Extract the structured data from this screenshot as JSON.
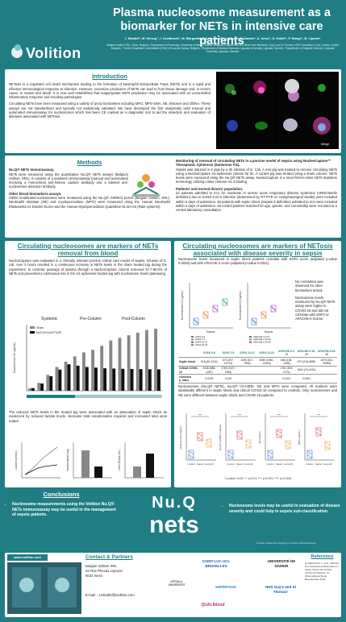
{
  "header": {
    "logo_text": "Volition",
    "title": "Plasma nucleosome measurement as a biomarker for NETs in intensive care patients",
    "authors": "J. Micallef¹, M. Herzog ¹, I. Cavdinovic¹, M. Wargodsky², A. Venturelli³, L. Morin³, L. Dandis⁴, A. Amoz⁵, D. Seidel⁶, P. Mange⁷, M. Lipsetz⁸",
    "affiliations": "¹Belgian Volition SRL, Isnes, Belgium, ²Department of Pharmacy, University of Namur, Namur, Belgium, ³Department of Critical Care Medicine, Guy's and St Thomas' NHS Foundation Trust, London, United Kingdom, ⁴Centre Hospitalier Universitaire (CHU) UCLouvain Namur, Belgium, ⁵Department of Medical Sciences, Uppsala University, Uppsala, Sweden, ⁶Department of Surgical Sciences, Uppsala University, Uppsala, Sweden"
  },
  "intro": {
    "title": "Introduction",
    "p1": "NETosis is a regulated cell death mechanism leading to the formation of Neutrophil Extracellular Traps (NETs) and is a rapid and effective immunological response to infection. However, excessive production of NETs can lead to host tissue damage and, in severe cases, to sepsis and death. It is now well established that inappropriate NETs production may be associated with an uncontrolled inflammatory response and resulting pathologies.",
    "p2": "Circulating NETs have been measured using a variety of proxy biomarkers including MPO, MPO-DNA, NE, histones and cfDNA. These assays are not standardized and typically not analytically validated. We have developed the first analytically valid manual and automated immunoassay for nucleosomes which has been CE marked as a diagnostic tool to aid the detection and evaluation of diseases associated with NETosis.",
    "image_caption": "Merge"
  },
  "methods": {
    "title": "Methods",
    "h1": "Nu.Q® NETs Immunoassay.",
    "p1": "NETs were measured using the quantitative Nu.Q® NETs assays (Belgium Volition, SRL). It consists of a sandwich immunoassay (manual and automated) involving a monoclonal anti-histone capture antibody and a labeled anti-nucleosome detection antibody.",
    "h2": "Other blood biomarkers assays.",
    "p2": "H3R8 citrullinated-nucleosomes were measured using the Nu.Q® H3R8Cit ELISA (Belgian Volition, SRL). Neutrophil elastase (NE) and myeloperoxidase (MPO) were measured using the Human Neutrophil Elastase/ELA2 DuoSet ELISA and the Human Myeloperoxidase Quantikine ELISA Kit (R&D systems).",
    "h3": "Monitoring of removal of circulating NETs in a porcine model of sepsis using NucleoCapture™ Therapeutic Apheresis (Santersus AG).",
    "p3": "Sepsis was induced in 2 pigs by a 3h infusion of E. Coli. A test pig was treated to remove circulating NETs using a NucleoCapture H1-apheresis column for 5h. A control pig was treated using a sham column. NETs levels were measured using the Nu.Q® NETs assay. NucleoCapture is a novel first-in-class NETs depletion technology utilizing Linker Histone H1.3 binding.",
    "h4": "Patients' and normal donors' population.",
    "p4": "22 patients admitted to ICU for moderate or severe acute respiratory distress syndrome (ARDS-Berlin definition) due to SARS-CoV-2 infection (determined by RT-PCR on nasopharyngeal swabs) were included within 5 days of admission. 46 patients with septic shock (Sepsis-3 definition) admitted to ICU were included within 2 days of admission. 48 control patients matched for age, gender, and comorbidity were recruited at a central laboratory consultation."
  },
  "capture": {
    "title": "Circulating nucleosomes are markers of NETs removal from blood",
    "p1": "NucleoCapture was evaluated in a clinically relevant porcine critical care model of sepsis. Infusion of E. coli. over 3 hours resulted in a continuous increase in NETs levels in the sham treated pig during the experiment. In contrast, passage of plasma through a NucleoCapture column removed 97.7-99.0% of NETs and prevented a continuous rise in the H1-apheresis treated pig with nucleosome levels plateauing.",
    "p2": "The reduced NETs levels in the treated pig were associated with an attenuation of septic shock as evidenced by reduced lactate levels, decrease total noradrenaline required and increased total urine output."
  },
  "netosis": {
    "title": "Circulating nucleosomes are markers of NETosis associated with disease severity in sepsis",
    "p1": "Nucleosome levels measured in septic shock patients correlate with SOFA score (adjusted p-value 0.0025) and with APACHE II score (adjusted p-value 0.0321).",
    "note1": "No correlation was observed for other biomarkers tested.",
    "note2": "Nucleosome levels measured by Nu.Q® NETs assay were higher in COVID-19 and did not correlate with SOFA or APACHE-II scores.",
    "p2": "Nucleosomes (Nu.Q® NETs), Nu.Q® Cit-H3R8, NE and MPO were compared. All markers were statistically different in septic shock and critical COVID-19 compared to controls. Only nucleosomes and NE were different between septic shock and COVID-19 patients.",
    "footnote": "*: p-value <0.05; **: p<0.01; ***: p<0.001; ****: p<0.0001"
  },
  "table": {
    "headers": [
      "",
      "SOFA 0-6",
      "SOFA 7-9",
      "SOFA 10-12",
      "SOFA 13-15",
      "APACHE-II 0-15",
      "APACHE-II 16-25",
      "APACHE-II 26-35"
    ],
    "rows": [
      [
        "Septic shock",
        "518 (49-1216)",
        "673 (397-15774)",
        "1055 (617-7606)",
        "8286 (1980-13409)",
        "666 (136-1258)",
        "673 (218-4899)",
        "1575 (641-29954)"
      ],
      [
        "Critical COVID-19",
        "2648 (888-4487)",
        "1769 (1027-1936)",
        "",
        "",
        "1761 (876-4721)",
        "1804 (76-4031)",
        ""
      ],
      [
        "corrected p_value",
        "0.0025",
        "0.025",
        "",
        "",
        "0.0321",
        "0.0321",
        ""
      ]
    ]
  },
  "charts": {
    "pig_chart": {
      "type": "line",
      "legend": [
        "Sham",
        "NUCLEOCAPTURE"
      ],
      "phase_labels": [
        "Systemic",
        "Pre-Column",
        "Post-Column"
      ],
      "ylabel": "Nucleosome Cit (ng/mL)",
      "x": [
        0,
        1,
        2,
        3,
        4,
        5,
        6,
        7,
        8,
        9,
        10,
        11,
        12,
        13,
        14
      ],
      "series": [
        {
          "name": "Sham",
          "values": [
            20,
            60,
            120,
            180,
            220,
            260,
            290,
            310,
            340,
            380,
            400,
            420,
            440,
            460,
            470
          ]
        },
        {
          "name": "NUCLEOCAPTURE",
          "values": [
            20,
            55,
            110,
            160,
            200,
            190,
            180,
            175,
            170,
            168,
            166,
            165,
            164,
            163,
            162
          ]
        }
      ]
    },
    "small_charts": [
      {
        "ylabel": "Lactate (mmol/L)"
      },
      {
        "ylabel": "Noradrenaline (mg)"
      },
      {
        "ylabel": "Urine Output (mL)"
      }
    ],
    "sepsis_charts": [
      {
        "ylabel": "Nucleosomes C2 (ng/mL)",
        "xlabel": "Sepsis",
        "legend": [
          "SOFA 0-6",
          "SOFA 7-9",
          "SOFA 10-12",
          "SOFA 13-15"
        ]
      },
      {
        "ylabel": "Nucleosomes C2 (ng/mL)",
        "xlabel": "Sepsis",
        "legend": [
          "APACHE-II 0-15",
          "APACHE-II 16-25",
          "APACHE-II 26-35"
        ]
      }
    ],
    "compare_charts": [
      {
        "ylabel": "Nucleosomes (ng/mL)",
        "categories": [
          "Control",
          "Septic",
          "Covid-19"
        ]
      },
      {
        "ylabel": "Nu.Q® H3R8Cit (ng/mL)",
        "categories": [
          "Control",
          "Septic",
          "Covid-19"
        ]
      },
      {
        "ylabel": "NE (ng/mL)",
        "categories": [
          "Control",
          "Septic",
          "Covid-19"
        ]
      },
      {
        "ylabel": "MPO (ng/mL)",
        "categories": [
          "Control",
          "Septic",
          "Covid-19"
        ]
      }
    ]
  },
  "conclusions": {
    "title": "Conclusions",
    "text": "Nucleosome measurements using the Volition Nu.Q® NETs immunoassay may be useful in the management of sepsis patients.",
    "logo_l1": "Nu.Q",
    "logo_l2": "nets",
    "right_text": "Nucleosome levels may be useful in evaluation of disease severity and could help in sepsis sub-classification.",
    "further": "* Further studies are ongoing to confirm clinical interests"
  },
  "footer": {
    "website": "www.volition.com",
    "contact_title": "Contact & Partners",
    "contact_lines": [
      "Belgian Volition SRL",
      "22 Rue Phocas Lejeune",
      "5032 Isnes"
    ],
    "email": "E-mail : J.Micallef@volition.com",
    "logos": [
      "SAINT-LUC UCL BRUXELLES",
      "UPPSALA UNIVERSITET",
      "santersus",
      "UNIVERSITÉ DE NAMUR",
      "NHS Guy's and St Thomas'",
      "QUALIblood"
    ],
    "ref_title": "Reference",
    "ref_text": "[1] Maurimani, L. et al., NETosis and Nucleosome Biomarkers in Septic Shock and Critical COVID-19 Patients: An Observational Study. Biomolecules 2022."
  },
  "colors": {
    "teal": "#1f7d83",
    "sham": "#888888",
    "capture": "#1f7d83"
  }
}
